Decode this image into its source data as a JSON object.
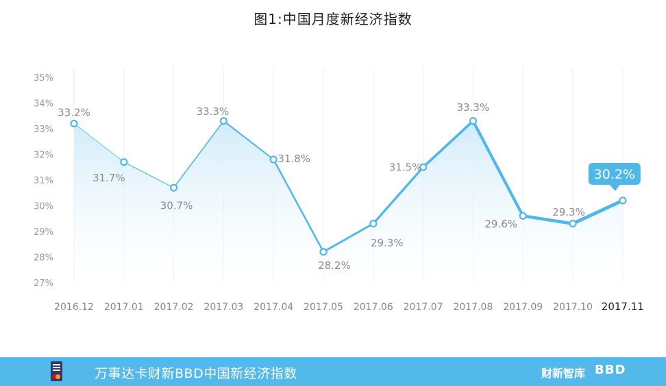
{
  "chart_data": {
    "type": "line",
    "title": "图1:中国月度新经济指数",
    "categories": [
      "2016.12",
      "2017.01",
      "2017.02",
      "2017.03",
      "2017.04",
      "2017.05",
      "2017.06",
      "2017.07",
      "2017.08",
      "2017.09",
      "2017.10",
      "2017.11"
    ],
    "values": [
      33.2,
      31.7,
      30.7,
      33.3,
      31.8,
      28.2,
      29.3,
      31.5,
      33.3,
      29.6,
      29.3,
      30.2
    ],
    "value_labels": [
      "33.2%",
      "31.7%",
      "30.7%",
      "33.3%",
      "31.8%",
      "28.2%",
      "29.3%",
      "31.5%",
      "33.3%",
      "29.6%",
      "29.3%",
      "30.2%"
    ],
    "ylim": [
      27,
      35
    ],
    "yticks": [
      "27%",
      "28%",
      "29%",
      "30%",
      "31%",
      "32%",
      "33%",
      "34%",
      "35%"
    ],
    "grid": "vertical",
    "highlight_last": true,
    "colors": {
      "line": "#4fb8e8",
      "area": "#dff1fb",
      "callout": "#4fb8e8"
    }
  },
  "footer": {
    "text": "万事达卡财新BBD中国新经济指数",
    "brand_cn": "财新智库",
    "brand_en": "BBD"
  }
}
